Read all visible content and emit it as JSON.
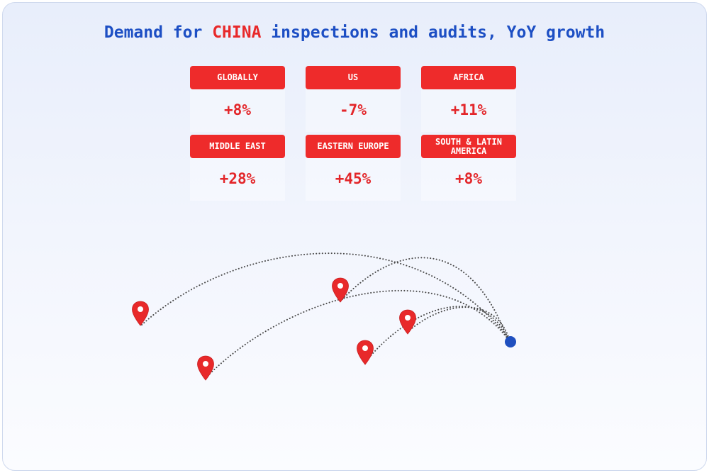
{
  "title": {
    "prefix": "Demand for ",
    "highlight": "CHINA",
    "suffix": " inspections and audits, YoY growth"
  },
  "regions": [
    {
      "label": "GLOBALLY",
      "value": "+8%"
    },
    {
      "label": "US",
      "value": "-7%"
    },
    {
      "label": "AFRICA",
      "value": "+11%"
    },
    {
      "label": "MIDDLE EAST",
      "value": "+28%"
    },
    {
      "label": "EASTERN EUROPE",
      "value": "+45%"
    },
    {
      "label": "SOUTH & LATIN AMERICA",
      "value": "+8%"
    }
  ],
  "colors": {
    "title": "#1d4fc4",
    "highlight": "#e8292a",
    "pill": "#ee2b2b",
    "value": "#e3262a",
    "pin": "#e8292a",
    "origin": "#1f4fbf",
    "route": "#4a4a4a"
  },
  "icons": {
    "destination": "map-pin-icon",
    "origin": "origin-dot"
  }
}
